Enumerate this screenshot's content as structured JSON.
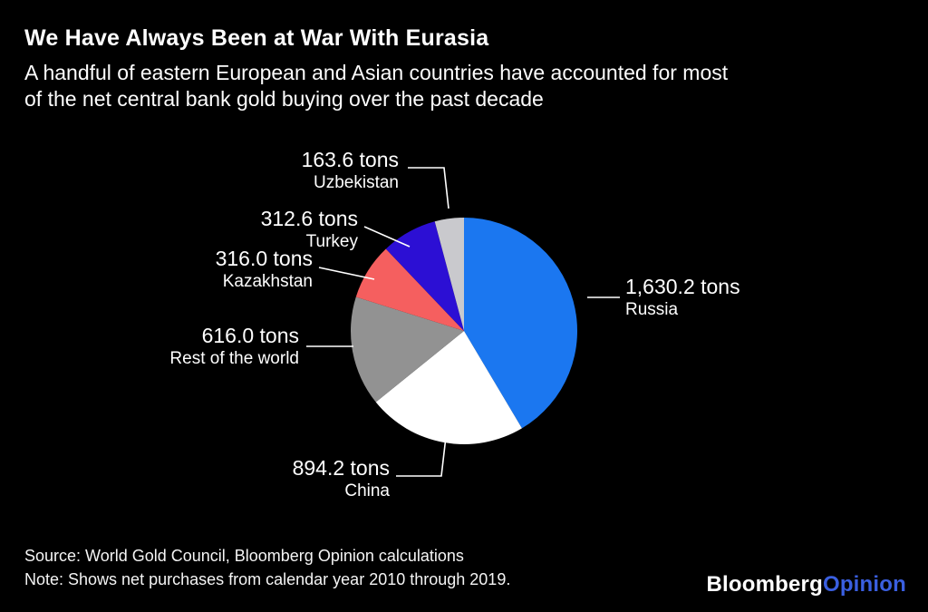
{
  "header": {
    "title": "We Have Always Been at War With Eurasia",
    "subtitle_lines": [
      "A handful of eastern European and Asian countries have accounted for most",
      "of the net central bank gold buying over the past decade"
    ]
  },
  "chart_data": {
    "type": "pie",
    "title": "We Have Always Been at War With Eurasia",
    "unit": "tons",
    "start_angle_deg": -90,
    "direction": "clockwise",
    "total": 3932.6,
    "slices": [
      {
        "label": "Russia",
        "value": 1630.2,
        "value_label": "1,630.2 tons",
        "color": "#1b77f0"
      },
      {
        "label": "China",
        "value": 894.2,
        "value_label": "894.2 tons",
        "color": "#ffffff"
      },
      {
        "label": "Rest of the world",
        "value": 616.0,
        "value_label": "616.0 tons",
        "color": "#929292"
      },
      {
        "label": "Kazakhstan",
        "value": 316.0,
        "value_label": "316.0 tons",
        "color": "#f55f5f"
      },
      {
        "label": "Turkey",
        "value": 312.6,
        "value_label": "312.6 tons",
        "color": "#2c0fd4"
      },
      {
        "label": "Uzbekistan",
        "value": 163.6,
        "value_label": "163.6 tons",
        "color": "#c9c9cd"
      }
    ],
    "legend_position": "callouts",
    "grid": false
  },
  "footer": {
    "source": "Source: World Gold Council, Bloomberg Opinion calculations",
    "note": "Note: Shows net purchases from calendar year 2010 through 2019."
  },
  "logo": {
    "part1": "Bloomberg",
    "part2": "Opinion",
    "accent_color": "#3a5fe0"
  }
}
